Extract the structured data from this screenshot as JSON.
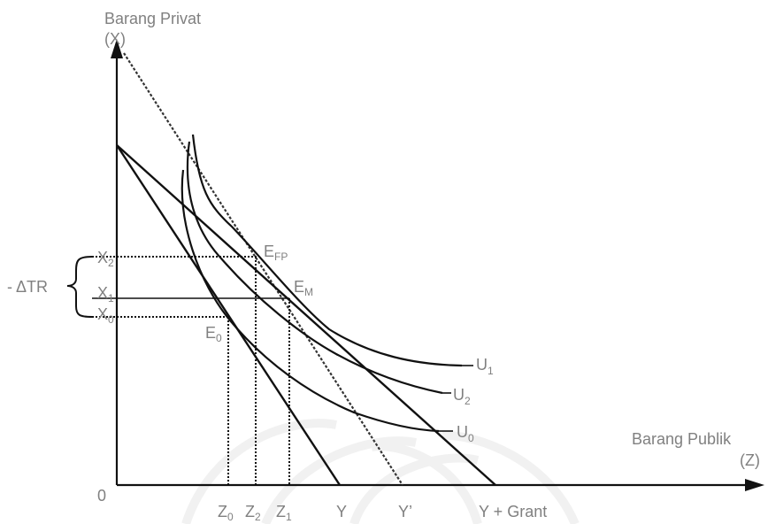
{
  "axis": {
    "y_label_line1": "Barang Privat",
    "y_label_line2": "(X)",
    "x_label_line1": "Barang Publik",
    "x_label_line2": "(Z)",
    "origin": "0"
  },
  "x_ticks": [
    {
      "main": "Z",
      "sub": "0"
    },
    {
      "main": "Z",
      "sub": "2"
    },
    {
      "main": "Z",
      "sub": "1"
    },
    {
      "main": "Y",
      "sub": ""
    },
    {
      "main": "Y’",
      "sub": ""
    },
    {
      "main": "Y + Grant",
      "sub": ""
    }
  ],
  "y_ticks": [
    {
      "main": "X",
      "sub": "2"
    },
    {
      "main": "X",
      "sub": "1"
    },
    {
      "main": "X",
      "sub": "0"
    }
  ],
  "bracket_label": "- ΔTR",
  "points": [
    {
      "main": "E",
      "sub": "FP"
    },
    {
      "main": "E",
      "sub": "M"
    },
    {
      "main": "E",
      "sub": "0"
    }
  ],
  "curves": [
    {
      "main": "U",
      "sub": "1"
    },
    {
      "main": "U",
      "sub": "2"
    },
    {
      "main": "U",
      "sub": "0"
    }
  ]
}
